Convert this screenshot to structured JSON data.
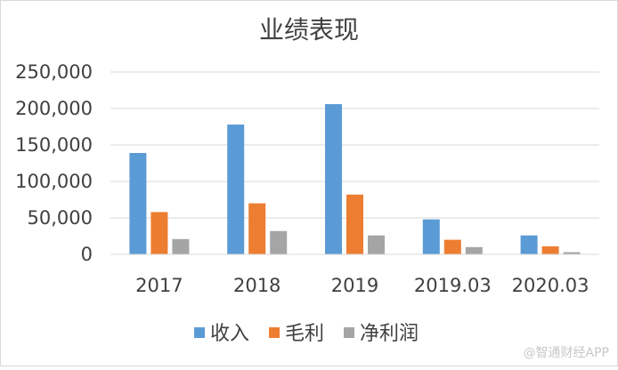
{
  "chart_data": {
    "type": "bar",
    "title": "业绩表现",
    "categories": [
      "2017",
      "2018",
      "2019",
      "2019.03",
      "2020.03"
    ],
    "series": [
      {
        "name": "收入",
        "color": "#5b9bd5",
        "values": [
          139000,
          178000,
          206000,
          48000,
          26000
        ]
      },
      {
        "name": "毛利",
        "color": "#ed7d31",
        "values": [
          58000,
          70000,
          82000,
          20000,
          11000
        ]
      },
      {
        "name": "净利润",
        "color": "#a5a5a5",
        "values": [
          21000,
          32000,
          26000,
          10000,
          3000
        ]
      }
    ],
    "yticks": [
      "0",
      "50,000",
      "100,000",
      "150,000",
      "200,000",
      "250,000"
    ],
    "ylim": [
      0,
      250000
    ],
    "grid": true,
    "legend_position": "bottom"
  },
  "watermark": "@智通财经APP"
}
